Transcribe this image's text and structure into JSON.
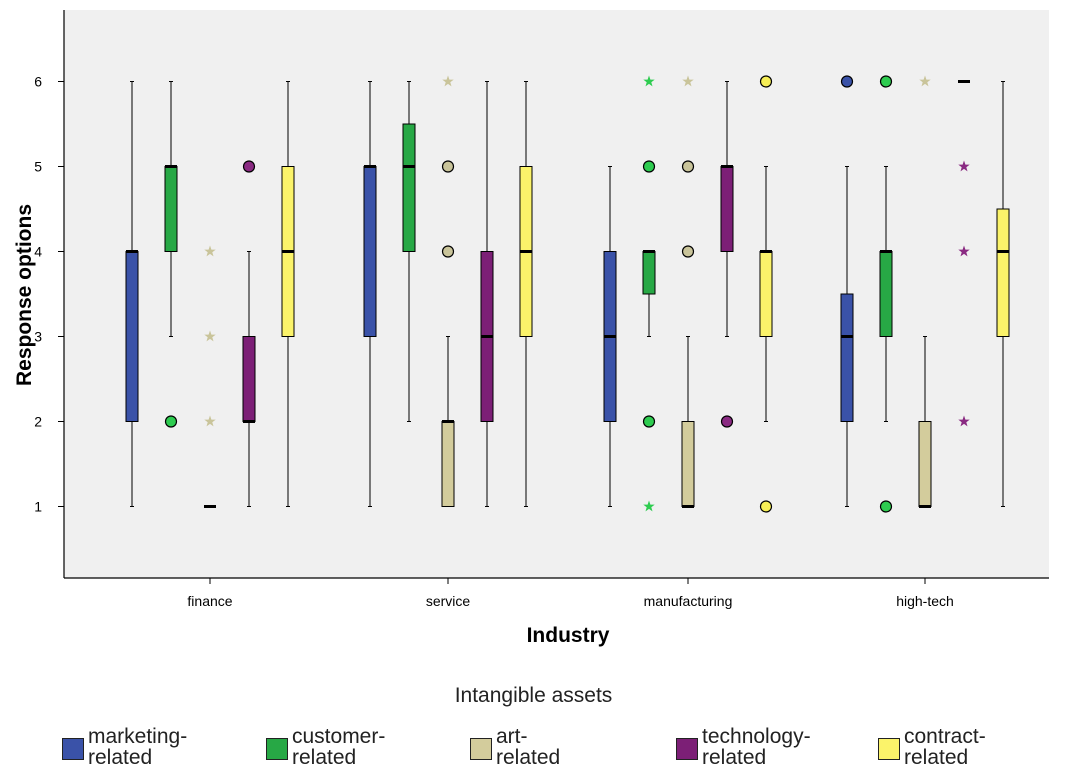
{
  "chart_data": {
    "type": "boxplot",
    "xlabel": "Industry",
    "ylabel": "Response options",
    "ylim": [
      0,
      6.9
    ],
    "yticks": [
      1,
      2,
      3,
      4,
      5,
      6
    ],
    "grid": false,
    "legend_position": "bottom",
    "legend_title": "Intangible assets",
    "categories": [
      "finance",
      "service",
      "manufacturing",
      "high-tech"
    ],
    "series": [
      {
        "name": "marketing-related",
        "color": "#3a52a8",
        "outlier_color": "#3a52a8"
      },
      {
        "name": "customer-related",
        "color": "#27a845",
        "outlier_color": "#2ecc50"
      },
      {
        "name": "art-related",
        "color": "#d3cc9c",
        "outlier_color": "#c9c49a"
      },
      {
        "name": "technology-related",
        "color": "#7c1f76",
        "outlier_color": "#8a2a82"
      },
      {
        "name": "contract-related",
        "color": "#fbf36a",
        "outlier_color": "#f6ee56"
      }
    ],
    "boxes": [
      {
        "category": "finance",
        "series": "marketing-related",
        "min": 1,
        "q1": 2,
        "median": 4,
        "q3": 4,
        "max": 6,
        "circles": [],
        "stars": []
      },
      {
        "category": "finance",
        "series": "customer-related",
        "min": 3,
        "q1": 4,
        "median": 5,
        "q3": 5,
        "max": 6,
        "circles": [
          2
        ],
        "stars": []
      },
      {
        "category": "finance",
        "series": "art-related",
        "min": 1,
        "q1": 1,
        "median": 1,
        "q3": 1,
        "max": 1,
        "circles": [],
        "stars": [
          2,
          3,
          4
        ]
      },
      {
        "category": "finance",
        "series": "technology-related",
        "min": 1,
        "q1": 2,
        "median": 2,
        "q3": 3,
        "max": 4,
        "circles": [
          5
        ],
        "stars": []
      },
      {
        "category": "finance",
        "series": "contract-related",
        "min": 1,
        "q1": 3,
        "median": 4,
        "q3": 5,
        "max": 6,
        "circles": [],
        "stars": []
      },
      {
        "category": "service",
        "series": "marketing-related",
        "min": 1,
        "q1": 3,
        "median": 5,
        "q3": 5,
        "max": 6,
        "circles": [],
        "stars": []
      },
      {
        "category": "service",
        "series": "customer-related",
        "min": 2,
        "q1": 4,
        "median": 5,
        "q3": 5.5,
        "max": 6,
        "circles": [],
        "stars": []
      },
      {
        "category": "service",
        "series": "art-related",
        "min": 1,
        "q1": 1,
        "median": 2,
        "q3": 2,
        "max": 3,
        "circles": [
          4,
          5
        ],
        "stars": [
          6
        ]
      },
      {
        "category": "service",
        "series": "technology-related",
        "min": 1,
        "q1": 2,
        "median": 3,
        "q3": 4,
        "max": 6,
        "circles": [],
        "stars": []
      },
      {
        "category": "service",
        "series": "contract-related",
        "min": 1,
        "q1": 3,
        "median": 4,
        "q3": 5,
        "max": 6,
        "circles": [],
        "stars": []
      },
      {
        "category": "manufacturing",
        "series": "marketing-related",
        "min": 1,
        "q1": 2,
        "median": 3,
        "q3": 4,
        "max": 5,
        "circles": [],
        "stars": []
      },
      {
        "category": "manufacturing",
        "series": "customer-related",
        "min": 3,
        "q1": 3.5,
        "median": 4,
        "q3": 4,
        "max": 4,
        "circles": [
          2,
          5
        ],
        "stars": [
          1,
          6
        ]
      },
      {
        "category": "manufacturing",
        "series": "art-related",
        "min": 1,
        "q1": 1,
        "median": 1,
        "q3": 2,
        "max": 3,
        "circles": [
          4,
          5
        ],
        "stars": [
          6
        ]
      },
      {
        "category": "manufacturing",
        "series": "technology-related",
        "min": 3,
        "q1": 4,
        "median": 5,
        "q3": 5,
        "max": 6,
        "circles": [
          2
        ],
        "stars": []
      },
      {
        "category": "manufacturing",
        "series": "contract-related",
        "min": 2,
        "q1": 3,
        "median": 4,
        "q3": 4,
        "max": 5,
        "circles": [
          1,
          6
        ],
        "stars": []
      },
      {
        "category": "high-tech",
        "series": "marketing-related",
        "min": 1,
        "q1": 2,
        "median": 3,
        "q3": 3.5,
        "max": 5,
        "circles": [
          6
        ],
        "stars": []
      },
      {
        "category": "high-tech",
        "series": "customer-related",
        "min": 2,
        "q1": 3,
        "median": 4,
        "q3": 4,
        "max": 5,
        "circles": [
          1,
          6
        ],
        "stars": []
      },
      {
        "category": "high-tech",
        "series": "art-related",
        "min": 1,
        "q1": 1,
        "median": 1,
        "q3": 2,
        "max": 3,
        "circles": [],
        "stars": [
          6
        ]
      },
      {
        "category": "high-tech",
        "series": "technology-related",
        "min": 6,
        "q1": 6,
        "median": 6,
        "q3": 6,
        "max": 6,
        "circles": [],
        "stars": [
          2,
          4,
          5
        ]
      },
      {
        "category": "high-tech",
        "series": "contract-related",
        "min": 1,
        "q1": 3,
        "median": 4,
        "q3": 4.5,
        "max": 6,
        "circles": [],
        "stars": []
      }
    ]
  },
  "legend": {
    "title": "Intangible assets",
    "items": [
      {
        "line1": "marketing-",
        "line2": "related",
        "color": "#3a52a8"
      },
      {
        "line1": "customer-",
        "line2": "related",
        "color": "#27a845"
      },
      {
        "line1": "art-",
        "line2": "related",
        "color": "#d3cc9c"
      },
      {
        "line1": "technology-",
        "line2": "related",
        "color": "#7c1f76"
      },
      {
        "line1": "contract-",
        "line2": "related",
        "color": "#fbf36a"
      }
    ]
  }
}
